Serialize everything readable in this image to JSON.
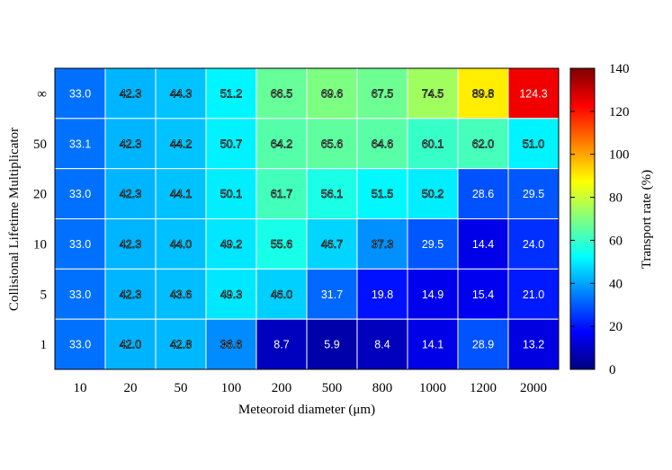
{
  "chart_data": {
    "type": "heatmap",
    "x_categories": [
      "10",
      "20",
      "50",
      "100",
      "200",
      "500",
      "800",
      "1000",
      "1200",
      "2000"
    ],
    "y_categories": [
      "∞",
      "50",
      "20",
      "10",
      "5",
      "1"
    ],
    "values": [
      [
        33.0,
        42.3,
        44.3,
        51.2,
        66.5,
        69.6,
        67.5,
        74.5,
        89.8,
        124.3
      ],
      [
        33.1,
        42.3,
        44.2,
        50.7,
        64.2,
        65.6,
        64.6,
        60.1,
        62.0,
        51.0
      ],
      [
        33.0,
        42.3,
        44.1,
        50.1,
        61.7,
        56.1,
        51.5,
        50.2,
        28.6,
        29.5
      ],
      [
        33.0,
        42.3,
        44.0,
        49.2,
        55.6,
        46.7,
        37.3,
        29.5,
        14.4,
        24.0
      ],
      [
        33.0,
        42.3,
        43.6,
        49.3,
        46.0,
        31.7,
        19.8,
        14.9,
        15.4,
        21.0
      ],
      [
        33.0,
        42.0,
        42.8,
        36.6,
        8.7,
        5.9,
        8.4,
        14.1,
        28.9,
        13.2
      ]
    ],
    "value_labels": [
      [
        "33.0",
        "42.3",
        "44.3",
        "51.2",
        "66.5",
        "69.6",
        "67.5",
        "74.5",
        "89.8",
        "124.3"
      ],
      [
        "33.1",
        "42.3",
        "44.2",
        "50.7",
        "64.2",
        "65.6",
        "64.6",
        "60.1",
        "62.0",
        "51.0"
      ],
      [
        "33.0",
        "42.3",
        "44.1",
        "50.1",
        "61.7",
        "56.1",
        "51.5",
        "50.2",
        "28.6",
        "29.5"
      ],
      [
        "33.0",
        "42.3",
        "44.0",
        "49.2",
        "55.6",
        "46.7",
        "37.3",
        "29.5",
        "14.4",
        "24.0"
      ],
      [
        "33.0",
        "42.3",
        "43.6",
        "49.3",
        "46.0",
        "31.7",
        "19.8",
        "14.9",
        "15.4",
        "21.0"
      ],
      [
        "33.0",
        "42.0",
        "42.8",
        "36.6",
        "8.7",
        "5.9",
        "8.4",
        "14.1",
        "28.9",
        "13.2"
      ]
    ],
    "xlabel": "Meteoroid diameter (μm)",
    "ylabel": "Collisional Lifetime Multiplicator",
    "colorbar": {
      "label": "Transport rate (%)",
      "range": [
        0,
        140
      ],
      "ticks": [
        "0",
        "20",
        "40",
        "60",
        "80",
        "100",
        "120",
        "140"
      ],
      "colormap": "jet"
    },
    "grid": false
  }
}
